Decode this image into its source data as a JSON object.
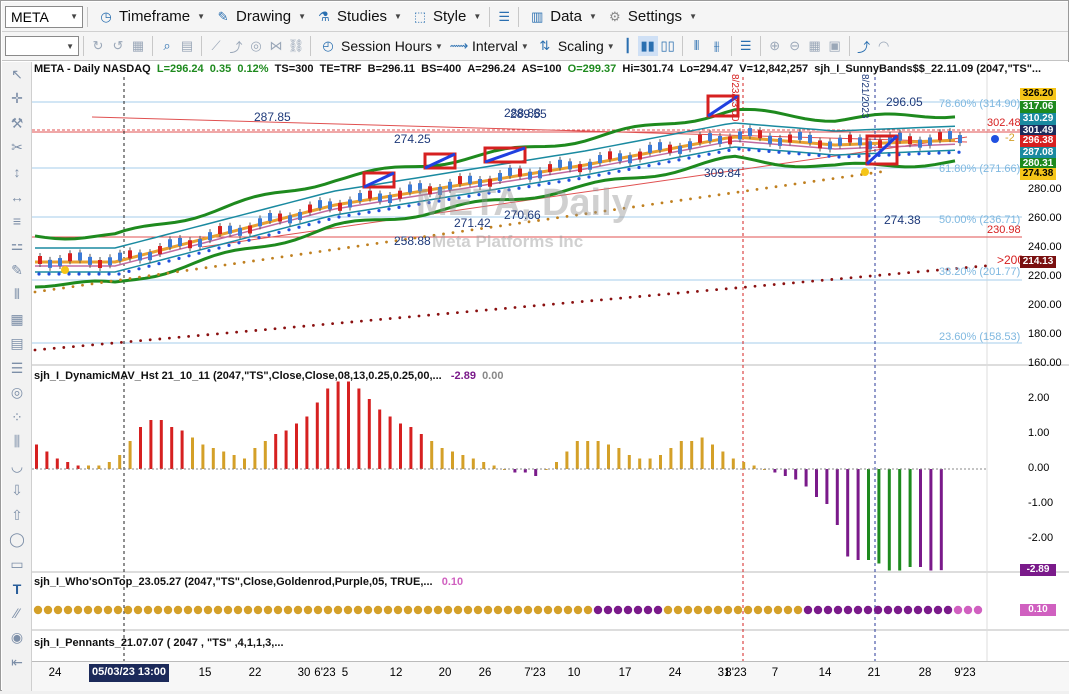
{
  "toolbar": {
    "symbol": "META",
    "timeframe": "Timeframe",
    "drawing": "Drawing",
    "studies": "Studies",
    "style": "Style",
    "data": "Data",
    "settings": "Settings",
    "session_hours": "Session Hours",
    "interval": "Interval",
    "scaling": "Scaling"
  },
  "header": {
    "sym": "META - Daily  NASDAQ",
    "l": "L=296.24",
    "chg": "0.35",
    "pct": "0.12%",
    "ts": "TS=300",
    "te": "TE=TRF",
    "b": "B=296.11",
    "bs": "BS=400",
    "a": "A=296.24",
    "as": "AS=100",
    "o": "O=299.37",
    "hi": "Hi=301.74",
    "lo": "Lo=294.47",
    "v": "V=12,842,257",
    "study": "sjh_I_SunnyBands$$_22.11.09 (2047,\"TS\"..."
  },
  "watermark": {
    "title": "META, Daily",
    "subtitle": "Meta Platforms Inc"
  },
  "price_axis": [
    "280.00",
    "260.00",
    "240.00",
    "220.00",
    "200.00",
    "180.00",
    "160.00"
  ],
  "price_pills": [
    {
      "v": "326.20",
      "bg": "#f5c518",
      "fg": "#000"
    },
    {
      "v": "317.06",
      "bg": "#1e8a1e",
      "fg": "#fff"
    },
    {
      "v": "310.29",
      "bg": "#1a8aa0",
      "fg": "#fff"
    },
    {
      "v": "301.49",
      "bg": "#1c2a5a",
      "fg": "#fff"
    },
    {
      "v": "296.38",
      "bg": "#d62020",
      "fg": "#fff"
    },
    {
      "v": "287.08",
      "bg": "#1a8aa0",
      "fg": "#fff"
    },
    {
      "v": "280.31",
      "bg": "#1e8a1e",
      "fg": "#fff"
    },
    {
      "v": "274.38",
      "bg": "#f5c518",
      "fg": "#000"
    },
    {
      "v": "214.13",
      "bg": "#7a1010",
      "fg": "#fff"
    }
  ],
  "price_marks": {
    "r1": "302.48",
    "r2": "230.98",
    "ma200": ">200",
    "arrow": "-2"
  },
  "fib": [
    {
      "label": "78.60% (314.90)"
    },
    {
      "label": "61.80% (271.66)"
    },
    {
      "label": "50.00% (236.71)"
    },
    {
      "label": "38.20% (201.77)"
    },
    {
      "label": "23.60% (158.53)"
    }
  ],
  "annotations": [
    "287.85",
    "289.55",
    "274.25",
    "271.42",
    "270.66",
    "258.88",
    "309.84",
    "296.05",
    "274.38"
  ],
  "annotation_overlap": "288.88",
  "date_markers": [
    "8/23/23 00",
    "8/21/2023"
  ],
  "ind1": {
    "title": "sjh_I_DynamicMAV_Hst 21_10_11 (2047,\"TS\",Close,Close,08,13,0.25,0.25,00,...",
    "v1": "-2.89",
    "v2": "0.00",
    "axis": [
      "2.00",
      "1.00",
      "0.00",
      "-1.00",
      "-2.00"
    ],
    "pill": "-2.89"
  },
  "ind2": {
    "title": "sjh_I_Who'sOnTop_23.05.27 (2047,\"TS\",Close,Goldenrod,Purple,05,  TRUE,...",
    "v1": "0.10",
    "pill": "0.10"
  },
  "ind3": {
    "title": "sjh_I_Pennants_21.07.07 ( 2047 , \"TS\" ,4,1,1,3,..."
  },
  "date_axis": {
    "labels": [
      "24",
      "15",
      "22",
      "30",
      "6'23",
      "5",
      "12",
      "20",
      "26",
      "7'23",
      "10",
      "17",
      "24",
      "31",
      "8'23",
      "7",
      "14",
      "21",
      "28",
      "9'23"
    ],
    "highlight": "05/03/23 13:00"
  },
  "colors": {
    "up": "#3b7ad6",
    "down": "#d62020",
    "gold": "#d4a028",
    "purple": "#7a1a8a",
    "green": "#1e8a1e"
  }
}
